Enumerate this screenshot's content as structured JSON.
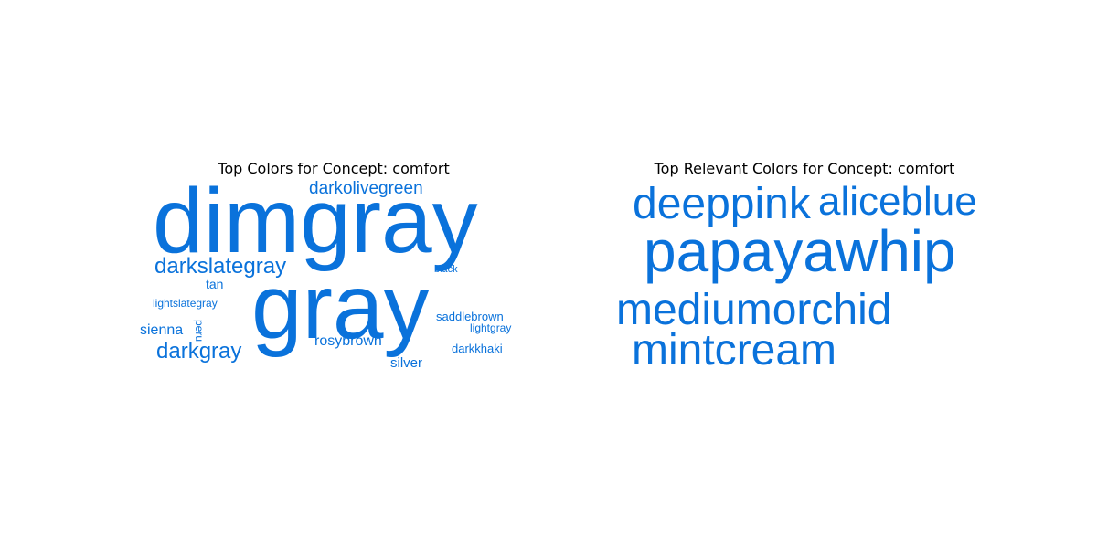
{
  "word_color": "#0a72db",
  "title_color": "#000000",
  "background_color": "#ffffff",
  "left_cloud": {
    "title": "Top Colors for Concept: comfort",
    "words": [
      {
        "text": "dimgray",
        "orientation": "horizontal"
      },
      {
        "text": "gray",
        "orientation": "horizontal"
      },
      {
        "text": "darkolivegreen",
        "orientation": "horizontal"
      },
      {
        "text": "darkslategray",
        "orientation": "horizontal"
      },
      {
        "text": "black",
        "orientation": "horizontal"
      },
      {
        "text": "tan",
        "orientation": "horizontal"
      },
      {
        "text": "lightslategray",
        "orientation": "horizontal"
      },
      {
        "text": "saddlebrown",
        "orientation": "horizontal"
      },
      {
        "text": "lightgray",
        "orientation": "horizontal"
      },
      {
        "text": "sienna",
        "orientation": "horizontal"
      },
      {
        "text": "peru",
        "orientation": "vertical"
      },
      {
        "text": "rosybrown",
        "orientation": "horizontal"
      },
      {
        "text": "darkgray",
        "orientation": "horizontal"
      },
      {
        "text": "darkkhaki",
        "orientation": "horizontal"
      },
      {
        "text": "silver",
        "orientation": "horizontal"
      }
    ]
  },
  "right_cloud": {
    "title": "Top Relevant Colors for Concept: comfort",
    "words": [
      {
        "text": "deeppink",
        "orientation": "horizontal"
      },
      {
        "text": "aliceblue",
        "orientation": "horizontal"
      },
      {
        "text": "papayawhip",
        "orientation": "horizontal"
      },
      {
        "text": "mediumorchid",
        "orientation": "horizontal"
      },
      {
        "text": "mintcream",
        "orientation": "horizontal"
      }
    ]
  }
}
